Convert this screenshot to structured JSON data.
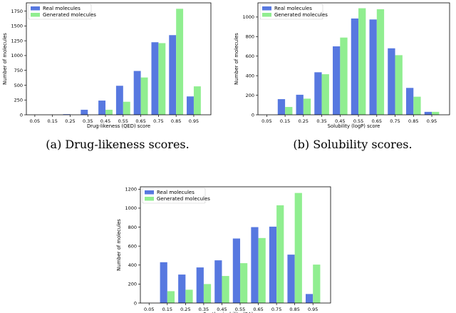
{
  "colors": {
    "real": "#5778e0",
    "generated": "#90ee90"
  },
  "chart_data": [
    {
      "id": "qed",
      "type": "bar",
      "caption": "(a) Drug-likeness scores.",
      "xlabel": "Drug-likeness (QED) score",
      "ylabel": "Number of molecules",
      "categories": [
        "0.05",
        "0.15",
        "0.25",
        "0.35",
        "0.45",
        "0.55",
        "0.65",
        "0.75",
        "0.85",
        "0.95"
      ],
      "yticks": [
        0,
        250,
        500,
        750,
        1000,
        1250,
        1500,
        1750
      ],
      "ylim": [
        0,
        1890
      ],
      "legend": "top-left",
      "series": [
        {
          "name": "Real molecules",
          "values": [
            0,
            0,
            10,
            85,
            240,
            490,
            740,
            1225,
            1345,
            310
          ]
        },
        {
          "name": "Generated molecules",
          "values": [
            0,
            0,
            0,
            0,
            85,
            220,
            630,
            1210,
            1790,
            480
          ]
        }
      ]
    },
    {
      "id": "logp",
      "type": "bar",
      "caption": "(b) Solubility scores.",
      "xlabel": "Solubility (logP) score",
      "ylabel": "Number of molecules",
      "categories": [
        "0.05",
        "0.15",
        "0.25",
        "0.35",
        "0.45",
        "0.55",
        "0.65",
        "0.75",
        "0.85",
        "0.95"
      ],
      "yticks": [
        0,
        200,
        400,
        600,
        800,
        1000
      ],
      "ylim": [
        0,
        1145
      ],
      "legend": "top-left",
      "series": [
        {
          "name": "Real molecules",
          "values": [
            0,
            160,
            205,
            435,
            700,
            985,
            975,
            680,
            275,
            30
          ]
        },
        {
          "name": "Generated molecules",
          "values": [
            0,
            80,
            165,
            415,
            790,
            1090,
            1080,
            610,
            185,
            30
          ]
        }
      ]
    },
    {
      "id": "sa",
      "type": "bar",
      "caption": "",
      "xlabel": "Synthesizability (SA) score",
      "ylabel": "Number of molecules",
      "categories": [
        "0.05",
        "0.15",
        "0.25",
        "0.35",
        "0.45",
        "0.55",
        "0.65",
        "0.75",
        "0.85",
        "0.95"
      ],
      "yticks": [
        0,
        200,
        400,
        600,
        800,
        1000,
        1200
      ],
      "ylim": [
        0,
        1225
      ],
      "legend": "top-left",
      "series": [
        {
          "name": "Real molecules",
          "values": [
            0,
            430,
            300,
            375,
            450,
            680,
            800,
            805,
            510,
            95
          ]
        },
        {
          "name": "Generated molecules",
          "values": [
            0,
            125,
            140,
            200,
            285,
            420,
            685,
            1030,
            1160,
            405
          ]
        }
      ]
    }
  ]
}
